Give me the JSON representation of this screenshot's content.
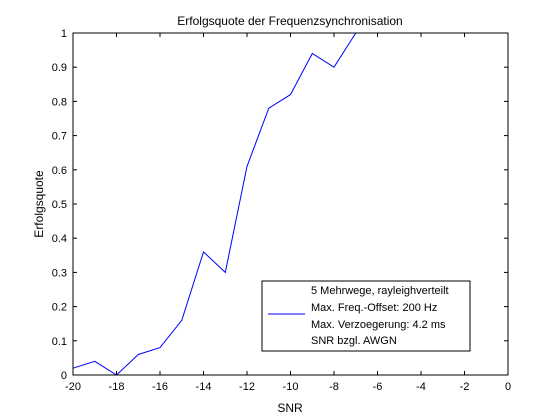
{
  "chart_data": {
    "type": "line",
    "title": "Erfolgsquote der Frequenzsynchronisation",
    "xlabel": "SNR",
    "ylabel": "Erfolgsquote",
    "xlim": [
      -20,
      0
    ],
    "ylim": [
      0,
      1
    ],
    "x_ticks": [
      -20,
      -18,
      -16,
      -14,
      -12,
      -10,
      -8,
      -6,
      -4,
      -2,
      0
    ],
    "y_ticks": [
      0,
      0.1,
      0.2,
      0.3,
      0.4,
      0.5,
      0.6,
      0.7,
      0.8,
      0.9,
      1
    ],
    "x_tick_labels": [
      "-20",
      "-18",
      "-16",
      "-14",
      "-12",
      "-10",
      "-8",
      "-6",
      "-4",
      "-2",
      "0"
    ],
    "y_tick_labels": [
      "0",
      "0.1",
      "0.2",
      "0.3",
      "0.4",
      "0.5",
      "0.6",
      "0.7",
      "0.8",
      "0.9",
      "1"
    ],
    "grid": false,
    "legend_position": "bottom-right",
    "series": [
      {
        "name": "5 Mehrwege, rayleighverteilt",
        "color": "#0000ff",
        "x": [
          -20,
          -19,
          -18,
          -17,
          -16,
          -15,
          -14,
          -13,
          -12,
          -11,
          -10,
          -9,
          -8,
          -7
        ],
        "y": [
          0.02,
          0.04,
          0.0,
          0.06,
          0.08,
          0.16,
          0.36,
          0.3,
          0.61,
          0.78,
          0.82,
          0.94,
          0.9,
          1.0
        ]
      }
    ],
    "legend": {
      "lines": [
        "5 Mehrwege, rayleighverteilt",
        "Max. Freq.-Offset: 200 Hz",
        "Max. Verzoegerung: 4.2 ms",
        "SNR bzgl. AWGN"
      ]
    }
  }
}
